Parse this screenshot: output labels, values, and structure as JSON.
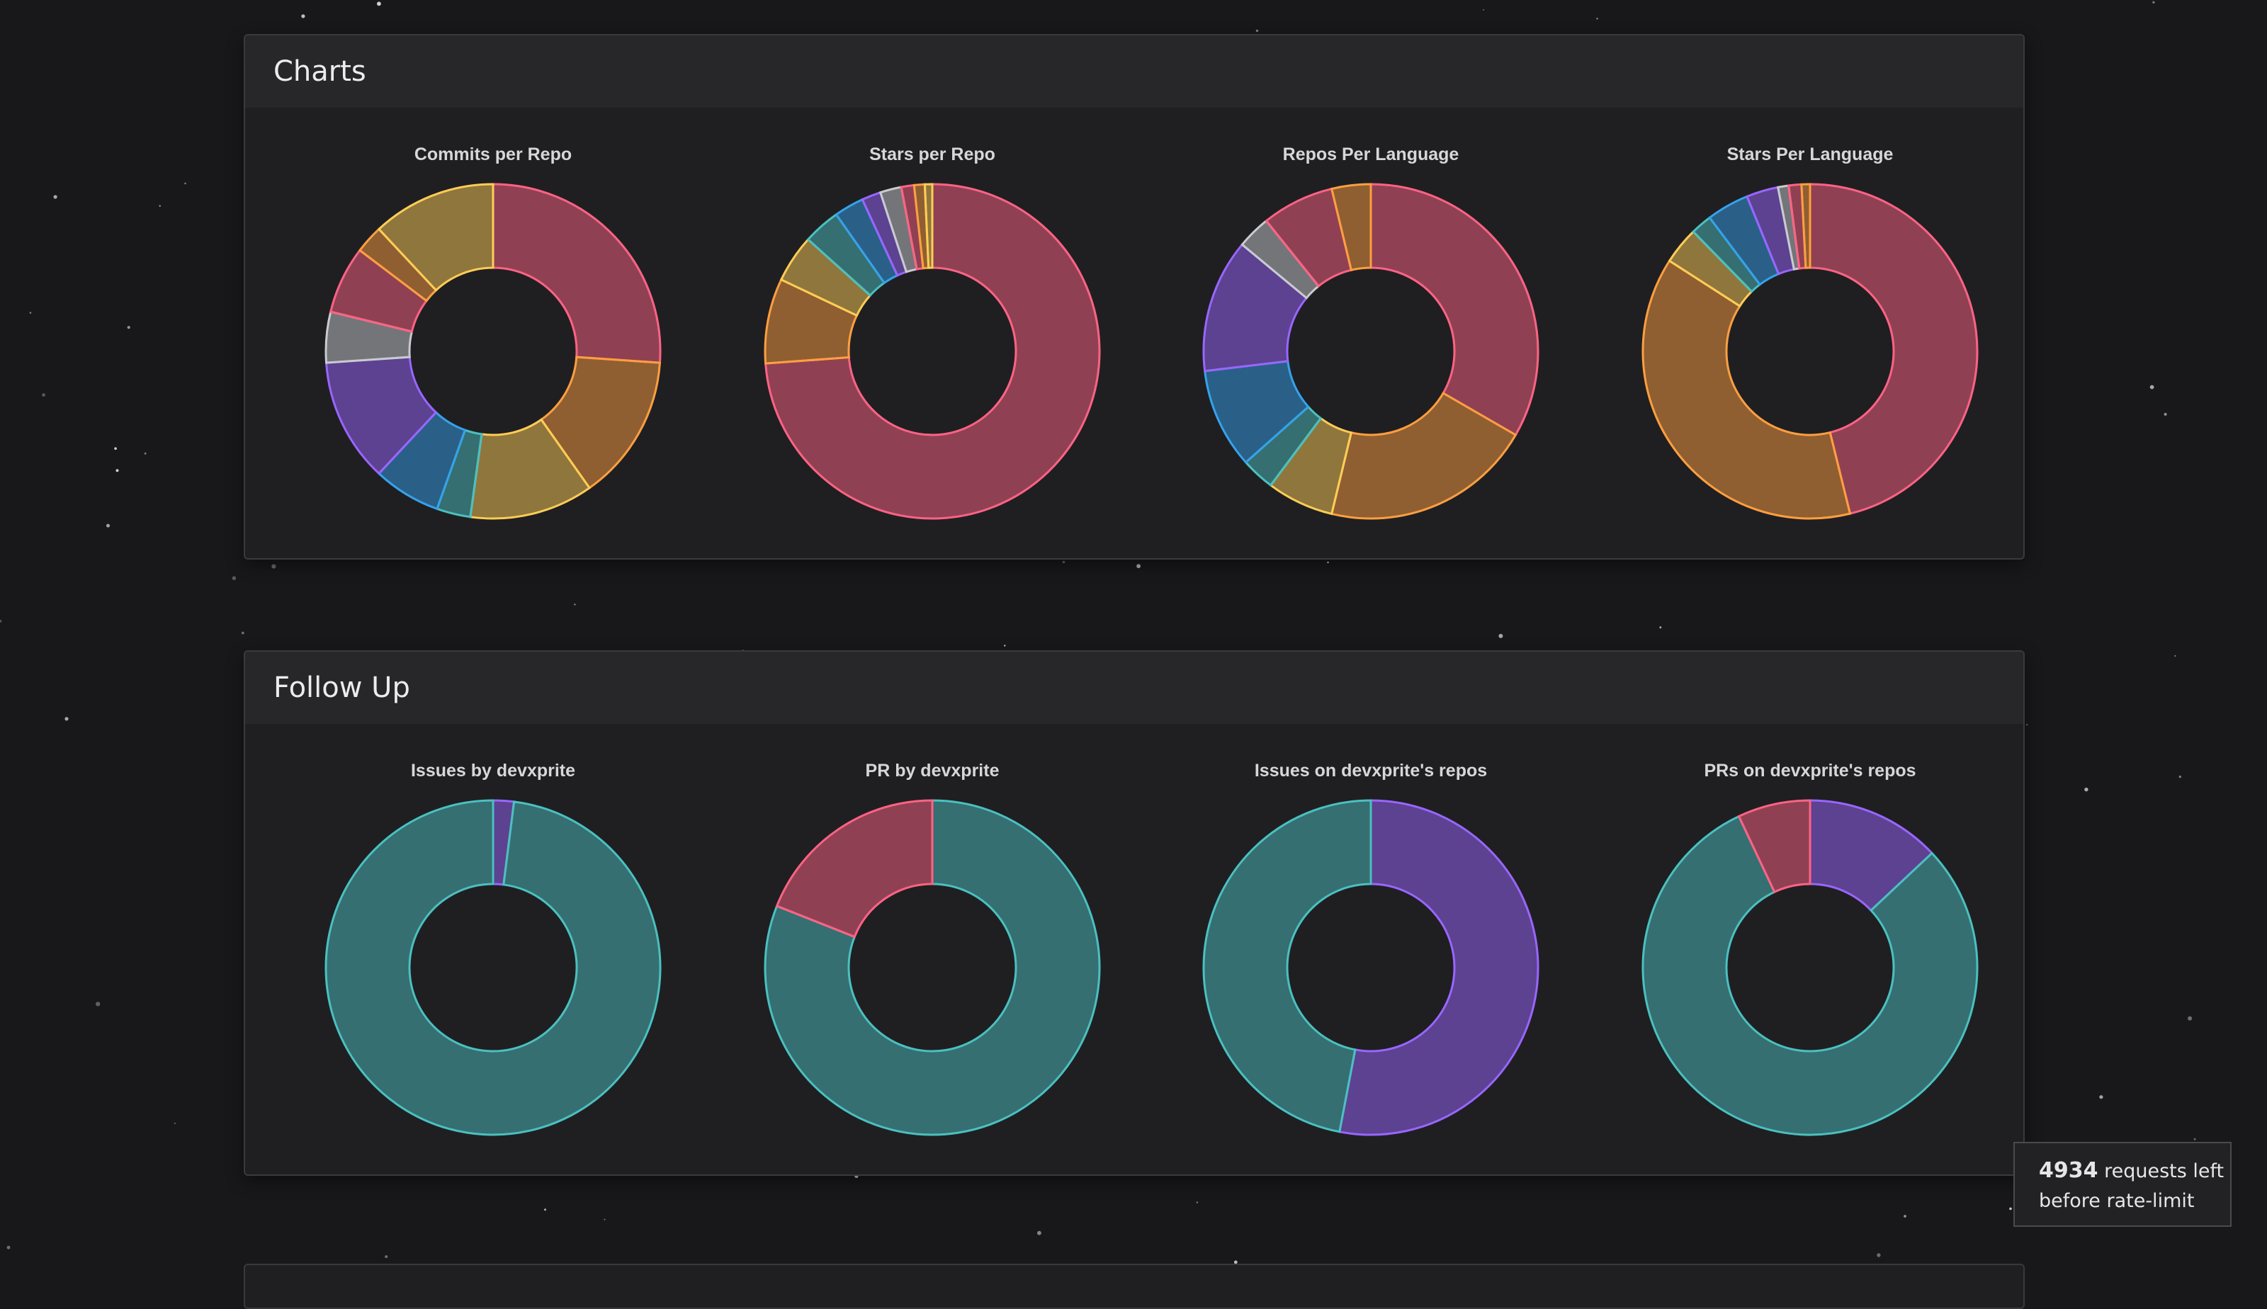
{
  "colors": {
    "background": "#18181b",
    "panel": "#1f1f22",
    "panel_header": "#27272a",
    "palette": {
      "red": "#ff6384",
      "orange": "#ff9f40",
      "yellow": "#ffcd56",
      "teal": "#4bc0c0",
      "blue": "#36a2eb",
      "purple": "#9966ff",
      "grey": "#c9cbcf"
    }
  },
  "sections": [
    {
      "title": "Charts",
      "charts": [
        {
          "title": "Commits per Repo",
          "chart_data": {
            "type": "pie",
            "style": "doughnut",
            "slices": [
              {
                "value": 24,
                "color": "red"
              },
              {
                "value": 13,
                "color": "orange"
              },
              {
                "value": 11,
                "color": "yellow"
              },
              {
                "value": 3,
                "color": "teal"
              },
              {
                "value": 6,
                "color": "blue"
              },
              {
                "value": 11,
                "color": "purple"
              },
              {
                "value": 4.5,
                "color": "grey"
              },
              {
                "value": 6,
                "color": "red"
              },
              {
                "value": 2.5,
                "color": "orange"
              },
              {
                "value": 11,
                "color": "yellow"
              }
            ]
          }
        },
        {
          "title": "Stars per Repo",
          "chart_data": {
            "type": "pie",
            "style": "doughnut",
            "slices": [
              {
                "value": 72,
                "color": "red"
              },
              {
                "value": 8,
                "color": "orange"
              },
              {
                "value": 4.5,
                "color": "yellow"
              },
              {
                "value": 3.5,
                "color": "teal"
              },
              {
                "value": 2.8,
                "color": "blue"
              },
              {
                "value": 1.8,
                "color": "purple"
              },
              {
                "value": 2,
                "color": "grey"
              },
              {
                "value": 1.2,
                "color": "red"
              },
              {
                "value": 1,
                "color": "orange"
              },
              {
                "value": 0.7,
                "color": "yellow"
              }
            ]
          }
        },
        {
          "title": "Repos Per Language",
          "chart_data": {
            "type": "pie",
            "style": "doughnut",
            "slices": [
              {
                "value": 31,
                "color": "red"
              },
              {
                "value": 19,
                "color": "orange"
              },
              {
                "value": 6,
                "color": "yellow"
              },
              {
                "value": 3,
                "color": "teal"
              },
              {
                "value": 9,
                "color": "blue"
              },
              {
                "value": 12,
                "color": "purple"
              },
              {
                "value": 3,
                "color": "grey"
              },
              {
                "value": 6.5,
                "color": "red"
              },
              {
                "value": 3.5,
                "color": "orange"
              }
            ]
          }
        },
        {
          "title": "Stars Per Language",
          "chart_data": {
            "type": "pie",
            "style": "doughnut",
            "slices": [
              {
                "value": 45,
                "color": "red"
              },
              {
                "value": 37,
                "color": "orange"
              },
              {
                "value": 3.5,
                "color": "yellow"
              },
              {
                "value": 2,
                "color": "teal"
              },
              {
                "value": 4,
                "color": "blue"
              },
              {
                "value": 3,
                "color": "purple"
              },
              {
                "value": 1,
                "color": "grey"
              },
              {
                "value": 1.2,
                "color": "red"
              },
              {
                "value": 0.8,
                "color": "orange"
              }
            ]
          }
        }
      ]
    },
    {
      "title": "Follow Up",
      "charts": [
        {
          "title": "Issues by devxprite",
          "chart_data": {
            "type": "pie",
            "style": "doughnut",
            "slices": [
              {
                "value": 2,
                "color": "purple"
              },
              {
                "value": 98,
                "color": "teal"
              }
            ]
          }
        },
        {
          "title": "PR by devxprite",
          "chart_data": {
            "type": "pie",
            "style": "doughnut",
            "slices": [
              {
                "value": 81,
                "color": "teal"
              },
              {
                "value": 19,
                "color": "red"
              }
            ]
          }
        },
        {
          "title": "Issues on devxprite's repos",
          "chart_data": {
            "type": "pie",
            "style": "doughnut",
            "slices": [
              {
                "value": 53,
                "color": "purple"
              },
              {
                "value": 47,
                "color": "teal"
              }
            ]
          }
        },
        {
          "title": "PRs on devxprite's repos",
          "chart_data": {
            "type": "pie",
            "style": "doughnut",
            "slices": [
              {
                "value": 13,
                "color": "purple"
              },
              {
                "value": 80,
                "color": "teal"
              },
              {
                "value": 7,
                "color": "red"
              }
            ]
          }
        }
      ]
    }
  ],
  "rate_limit": {
    "count": "4934",
    "text_line1": "requests left",
    "text_line2": "before rate-limit"
  }
}
